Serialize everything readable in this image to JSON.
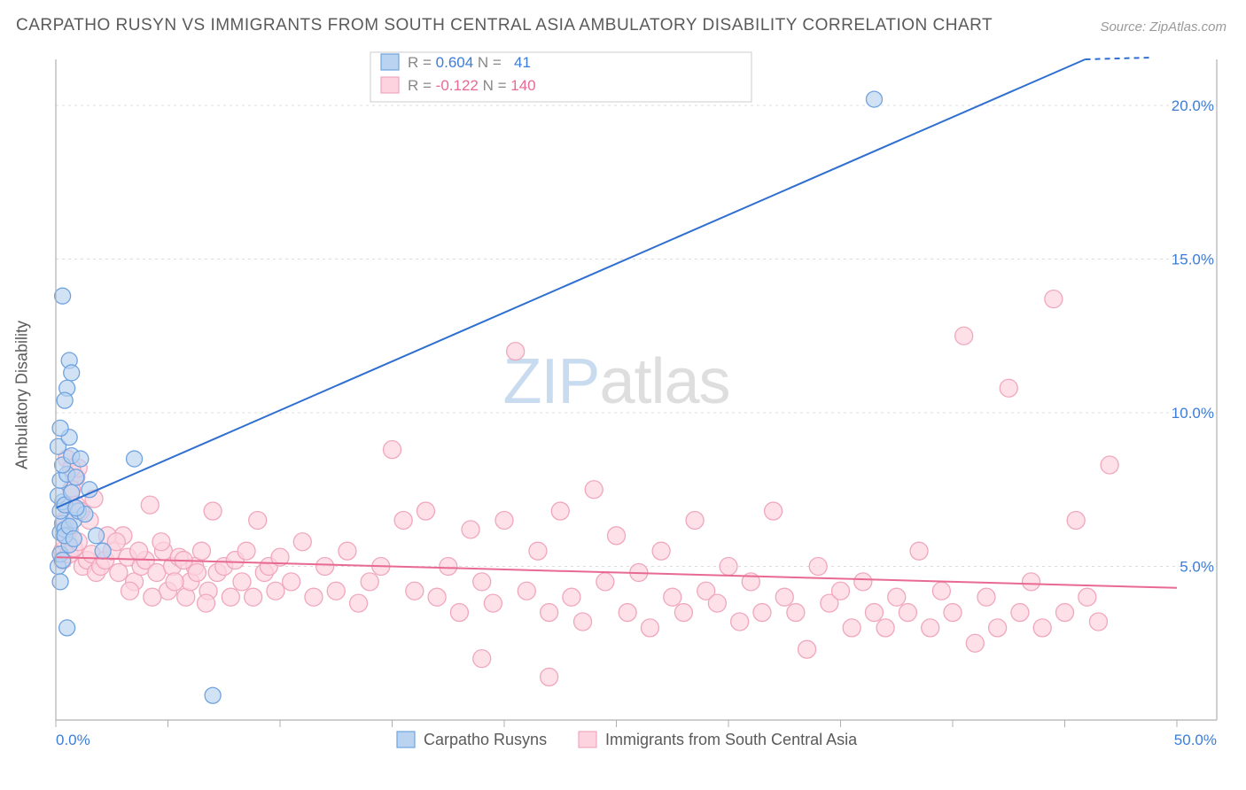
{
  "title": "CARPATHO RUSYN VS IMMIGRANTS FROM SOUTH CENTRAL ASIA AMBULATORY DISABILITY CORRELATION CHART",
  "source": "Source: ZipAtlas.com",
  "ylabel": "Ambulatory Disability",
  "watermark": {
    "part1": "ZIP",
    "part2": "atlas"
  },
  "chart": {
    "type": "scatter",
    "background_color": "#ffffff",
    "grid_color": "#dcdcdc",
    "grid_dash": "3,4",
    "axis_color": "#b0b0b0",
    "xlim": [
      0,
      50
    ],
    "ylim": [
      0,
      21.5
    ],
    "xticks": [
      0,
      5,
      10,
      15,
      20,
      25,
      30,
      35,
      40,
      45,
      50
    ],
    "xtick_labels": {
      "0": "0.0%",
      "50": "50.0%"
    },
    "yticks": [
      5,
      10,
      15,
      20
    ],
    "ytick_labels": {
      "5": "5.0%",
      "10": "10.0%",
      "15": "15.0%",
      "20": "20.0%"
    },
    "tick_color": "#3b7dd8",
    "series": [
      {
        "id": "carpatho",
        "label": "Carpatho Rusyns",
        "R": "0.604",
        "N": "41",
        "stat_color": "#3b7dd8",
        "marker_fill": "#b9d3f0",
        "marker_stroke": "#6fa3e0",
        "marker_opacity": 0.65,
        "marker_r": 9,
        "line_color": "#2f6fd0",
        "line_width": 2,
        "trend": {
          "x1": 0,
          "y1": 6.9,
          "x2": 50,
          "y2": 22.8
        },
        "points": [
          [
            0.1,
            5.0
          ],
          [
            0.2,
            6.1
          ],
          [
            0.3,
            6.4
          ],
          [
            0.2,
            6.8
          ],
          [
            0.3,
            7.1
          ],
          [
            0.1,
            7.3
          ],
          [
            0.4,
            7.0
          ],
          [
            0.2,
            7.8
          ],
          [
            0.5,
            8.0
          ],
          [
            0.3,
            8.3
          ],
          [
            0.7,
            8.6
          ],
          [
            0.1,
            8.9
          ],
          [
            0.6,
            9.2
          ],
          [
            0.2,
            9.5
          ],
          [
            0.4,
            6.2
          ],
          [
            0.8,
            6.5
          ],
          [
            0.2,
            5.4
          ],
          [
            0.6,
            5.7
          ],
          [
            1.0,
            6.8
          ],
          [
            0.3,
            13.8
          ],
          [
            0.6,
            11.7
          ],
          [
            0.7,
            11.3
          ],
          [
            0.5,
            10.8
          ],
          [
            0.4,
            10.4
          ],
          [
            1.5,
            7.5
          ],
          [
            1.3,
            6.7
          ],
          [
            1.8,
            6.0
          ],
          [
            2.1,
            5.5
          ],
          [
            0.5,
            3.0
          ],
          [
            0.2,
            4.5
          ],
          [
            0.9,
            7.9
          ],
          [
            1.1,
            8.5
          ],
          [
            3.5,
            8.5
          ],
          [
            7.0,
            0.8
          ],
          [
            36.5,
            20.2
          ],
          [
            0.4,
            6.0
          ],
          [
            0.6,
            6.3
          ],
          [
            0.8,
            5.9
          ],
          [
            0.3,
            5.2
          ],
          [
            0.7,
            7.4
          ],
          [
            0.9,
            6.9
          ]
        ]
      },
      {
        "id": "sca",
        "label": "Immigrants from South Central Asia",
        "R": "-0.122",
        "N": "140",
        "stat_color": "#e86a92",
        "marker_fill": "#fcd3de",
        "marker_stroke": "#f0a7bd",
        "marker_opacity": 0.7,
        "marker_r": 10,
        "line_color": "#e86a92",
        "line_width": 2,
        "trend": {
          "x1": 0,
          "y1": 5.3,
          "x2": 50,
          "y2": 4.3
        },
        "points": [
          [
            0.3,
            5.5
          ],
          [
            0.4,
            5.8
          ],
          [
            0.5,
            6.0
          ],
          [
            0.6,
            6.2
          ],
          [
            0.8,
            8.0
          ],
          [
            0.9,
            7.9
          ],
          [
            1.0,
            8.2
          ],
          [
            0.7,
            7.5
          ],
          [
            0.5,
            7.0
          ],
          [
            0.4,
            6.5
          ],
          [
            0.3,
            5.2
          ],
          [
            0.6,
            5.4
          ],
          [
            0.8,
            5.6
          ],
          [
            1.0,
            5.8
          ],
          [
            1.2,
            5.0
          ],
          [
            1.4,
            5.2
          ],
          [
            1.6,
            5.4
          ],
          [
            1.8,
            4.8
          ],
          [
            2.0,
            5.0
          ],
          [
            2.2,
            5.2
          ],
          [
            2.5,
            5.5
          ],
          [
            2.8,
            4.8
          ],
          [
            3.0,
            6.0
          ],
          [
            3.2,
            5.3
          ],
          [
            3.5,
            4.5
          ],
          [
            3.8,
            5.0
          ],
          [
            4.0,
            5.2
          ],
          [
            4.2,
            7.0
          ],
          [
            4.5,
            4.8
          ],
          [
            4.8,
            5.5
          ],
          [
            5.0,
            4.2
          ],
          [
            5.2,
            5.0
          ],
          [
            5.5,
            5.3
          ],
          [
            5.8,
            4.0
          ],
          [
            6.0,
            4.5
          ],
          [
            6.2,
            5.0
          ],
          [
            6.5,
            5.5
          ],
          [
            6.8,
            4.2
          ],
          [
            7.0,
            6.8
          ],
          [
            7.2,
            4.8
          ],
          [
            7.5,
            5.0
          ],
          [
            7.8,
            4.0
          ],
          [
            8.0,
            5.2
          ],
          [
            8.3,
            4.5
          ],
          [
            8.5,
            5.5
          ],
          [
            8.8,
            4.0
          ],
          [
            9.0,
            6.5
          ],
          [
            9.3,
            4.8
          ],
          [
            9.5,
            5.0
          ],
          [
            9.8,
            4.2
          ],
          [
            10.0,
            5.3
          ],
          [
            10.5,
            4.5
          ],
          [
            11.0,
            5.8
          ],
          [
            11.5,
            4.0
          ],
          [
            12.0,
            5.0
          ],
          [
            12.5,
            4.2
          ],
          [
            13.0,
            5.5
          ],
          [
            13.5,
            3.8
          ],
          [
            14.0,
            4.5
          ],
          [
            14.5,
            5.0
          ],
          [
            15.0,
            8.8
          ],
          [
            15.5,
            6.5
          ],
          [
            16.0,
            4.2
          ],
          [
            16.5,
            6.8
          ],
          [
            17.0,
            4.0
          ],
          [
            17.5,
            5.0
          ],
          [
            18.0,
            3.5
          ],
          [
            18.5,
            6.2
          ],
          [
            19.0,
            4.5
          ],
          [
            19.5,
            3.8
          ],
          [
            20.0,
            6.5
          ],
          [
            20.5,
            12.0
          ],
          [
            21.0,
            4.2
          ],
          [
            21.5,
            5.5
          ],
          [
            22.0,
            3.5
          ],
          [
            22.5,
            6.8
          ],
          [
            23.0,
            4.0
          ],
          [
            23.5,
            3.2
          ],
          [
            24.0,
            7.5
          ],
          [
            24.5,
            4.5
          ],
          [
            25.0,
            6.0
          ],
          [
            25.5,
            3.5
          ],
          [
            26.0,
            4.8
          ],
          [
            26.5,
            3.0
          ],
          [
            27.0,
            5.5
          ],
          [
            27.5,
            4.0
          ],
          [
            28.0,
            3.5
          ],
          [
            28.5,
            6.5
          ],
          [
            29.0,
            4.2
          ],
          [
            29.5,
            3.8
          ],
          [
            30.0,
            5.0
          ],
          [
            30.5,
            3.2
          ],
          [
            31.0,
            4.5
          ],
          [
            31.5,
            3.5
          ],
          [
            32.0,
            6.8
          ],
          [
            32.5,
            4.0
          ],
          [
            33.0,
            3.5
          ],
          [
            33.5,
            2.3
          ],
          [
            34.0,
            5.0
          ],
          [
            34.5,
            3.8
          ],
          [
            35.0,
            4.2
          ],
          [
            35.5,
            3.0
          ],
          [
            36.0,
            4.5
          ],
          [
            36.5,
            3.5
          ],
          [
            37.0,
            3.0
          ],
          [
            37.5,
            4.0
          ],
          [
            38.0,
            3.5
          ],
          [
            38.5,
            5.5
          ],
          [
            39.0,
            3.0
          ],
          [
            39.5,
            4.2
          ],
          [
            40.0,
            3.5
          ],
          [
            40.5,
            12.5
          ],
          [
            41.0,
            2.5
          ],
          [
            41.5,
            4.0
          ],
          [
            42.0,
            3.0
          ],
          [
            42.5,
            10.8
          ],
          [
            43.0,
            3.5
          ],
          [
            43.5,
            4.5
          ],
          [
            44.0,
            3.0
          ],
          [
            44.5,
            13.7
          ],
          [
            45.0,
            3.5
          ],
          [
            45.5,
            6.5
          ],
          [
            46.0,
            4.0
          ],
          [
            46.5,
            3.2
          ],
          [
            47.0,
            8.3
          ],
          [
            1.5,
            6.5
          ],
          [
            1.7,
            7.2
          ],
          [
            2.3,
            6.0
          ],
          [
            2.7,
            5.8
          ],
          [
            3.3,
            4.2
          ],
          [
            3.7,
            5.5
          ],
          [
            4.3,
            4.0
          ],
          [
            4.7,
            5.8
          ],
          [
            5.3,
            4.5
          ],
          [
            5.7,
            5.2
          ],
          [
            6.3,
            4.8
          ],
          [
            6.7,
            3.8
          ],
          [
            0.5,
            8.5
          ],
          [
            0.7,
            8.2
          ],
          [
            0.9,
            7.0
          ],
          [
            1.1,
            6.8
          ],
          [
            19.0,
            2.0
          ],
          [
            22.0,
            1.4
          ]
        ]
      }
    ],
    "stat_legend": {
      "text_color": "#888888",
      "border_color": "#cccccc",
      "swatch_border": "#888888"
    }
  },
  "bottom_legend": {
    "text_color": "#5a5a5a"
  }
}
